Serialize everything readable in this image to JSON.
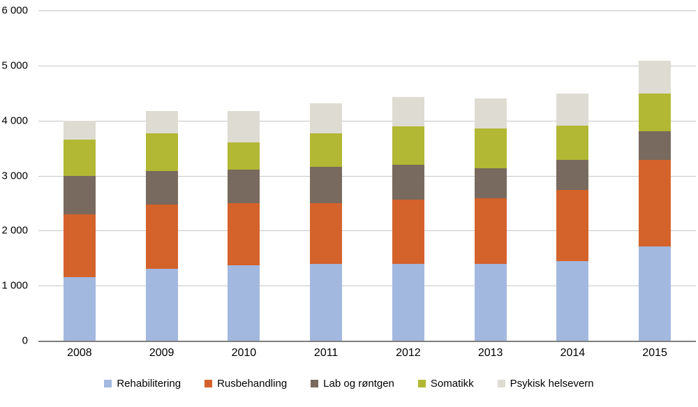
{
  "chart_data": {
    "type": "bar",
    "stacked": true,
    "title": "",
    "xlabel": "",
    "ylabel": "",
    "categories": [
      "2008",
      "2009",
      "2010",
      "2011",
      "2012",
      "2013",
      "2014",
      "2015"
    ],
    "series": [
      {
        "name": "Rehabilitering",
        "color": "#a3b8df",
        "values": [
          1150,
          1310,
          1370,
          1400,
          1400,
          1400,
          1450,
          1710
        ]
      },
      {
        "name": "Rusbehandling",
        "color": "#d4622b",
        "values": [
          1150,
          1160,
          1130,
          1100,
          1160,
          1190,
          1290,
          1580
        ]
      },
      {
        "name": "Lab og røntgen",
        "color": "#786a5e",
        "values": [
          700,
          610,
          610,
          660,
          640,
          550,
          550,
          520
        ]
      },
      {
        "name": "Somatikk",
        "color": "#b2b833",
        "values": [
          650,
          690,
          490,
          610,
          690,
          720,
          620,
          680
        ]
      },
      {
        "name": "Psykisk helsevern",
        "color": "#dedcd2",
        "values": [
          350,
          400,
          570,
          550,
          540,
          540,
          580,
          600
        ]
      }
    ],
    "ylim": [
      0,
      6000
    ],
    "ytick_step": 1000,
    "ytick_labels": [
      "0",
      "1 000",
      "2 000",
      "3 000",
      "4 000",
      "5 000",
      "6 000"
    ],
    "grid": true,
    "legend_position": "bottom"
  }
}
